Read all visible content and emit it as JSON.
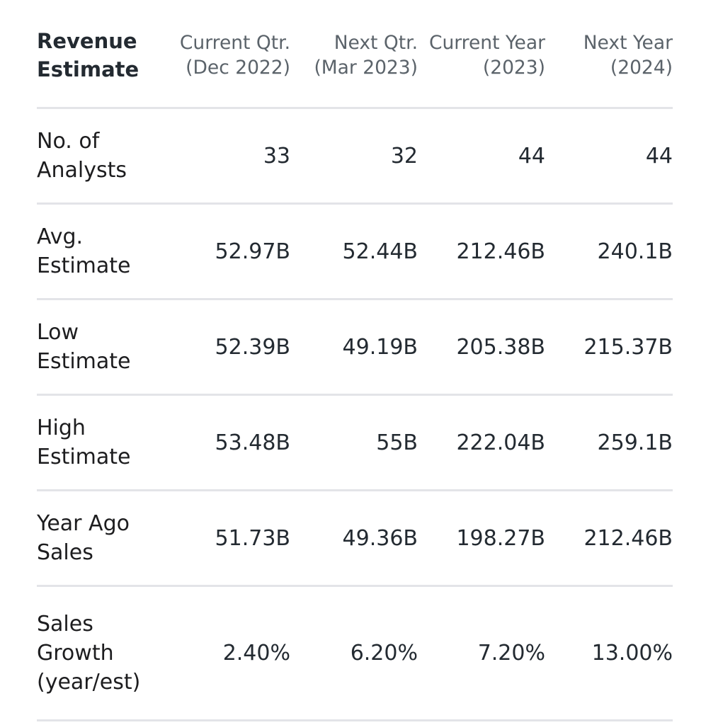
{
  "table": {
    "title_lines": [
      "Revenue",
      "Estimate"
    ],
    "columns": [
      {
        "line1": "Current Qtr.",
        "line2": "(Dec 2022)"
      },
      {
        "line1": "Next Qtr.",
        "line2": "(Mar 2023)"
      },
      {
        "line1": "Current Year",
        "line2": "(2023)"
      },
      {
        "line1": "Next Year",
        "line2": "(2024)"
      }
    ],
    "rows": [
      {
        "label_lines": [
          "No. of",
          "Analysts"
        ],
        "values": [
          "33",
          "32",
          "44",
          "44"
        ]
      },
      {
        "label_lines": [
          "Avg.",
          "Estimate"
        ],
        "values": [
          "52.97B",
          "52.44B",
          "212.46B",
          "240.1B"
        ]
      },
      {
        "label_lines": [
          "Low",
          "Estimate"
        ],
        "values": [
          "52.39B",
          "49.19B",
          "205.38B",
          "215.37B"
        ]
      },
      {
        "label_lines": [
          "High",
          "Estimate"
        ],
        "values": [
          "53.48B",
          "55B",
          "222.04B",
          "259.1B"
        ]
      },
      {
        "label_lines": [
          "Year Ago",
          "Sales"
        ],
        "values": [
          "51.73B",
          "49.36B",
          "198.27B",
          "212.46B"
        ]
      },
      {
        "label_lines": [
          "Sales",
          "Growth",
          "(year/est)"
        ],
        "values": [
          "2.40%",
          "6.20%",
          "7.20%",
          "13.00%"
        ]
      }
    ]
  }
}
